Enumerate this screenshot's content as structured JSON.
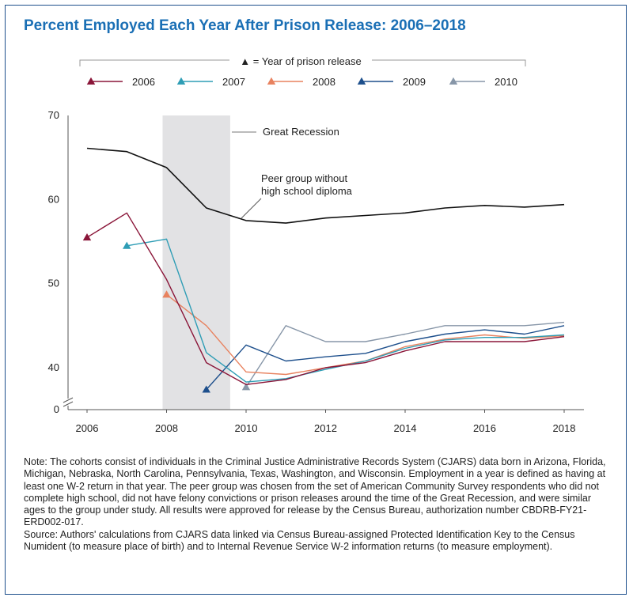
{
  "title": "Percent Employed Each Year After Prison Release: 2006–2018",
  "legend": {
    "header": "▲ = Year of prison release",
    "placement": "top"
  },
  "colors": {
    "2006": "#8a1538",
    "2007": "#2e9db5",
    "2008": "#e8825f",
    "2009": "#1d4f8c",
    "2010": "#8796a8",
    "peer": "#111111",
    "recession": "#e2e2e4"
  },
  "chart_data": {
    "type": "line",
    "title": "Percent Employed Each Year After Prison Release: 2006–2018",
    "xlabel": "",
    "ylabel": "",
    "xlim": [
      2006,
      2018
    ],
    "ylim": [
      35,
      70
    ],
    "y_axis_break": true,
    "xticks": [
      "2006",
      "2008",
      "2010",
      "2012",
      "2014",
      "2016",
      "2018"
    ],
    "yticks": [
      "0",
      "40",
      "50",
      "60",
      "70"
    ],
    "grid": false,
    "shaded_region": {
      "label": "Great Recession",
      "x": [
        2007.9,
        2009.6
      ]
    },
    "series": [
      {
        "name": "2006",
        "key": "2006",
        "x": [
          2006,
          2007,
          2008,
          2009,
          2010,
          2011,
          2012,
          2013,
          2014,
          2015,
          2016,
          2017,
          2018
        ],
        "values": [
          55.5,
          58.4,
          50.5,
          40.6,
          38.0,
          38.6,
          40.0,
          40.6,
          42.0,
          43.1,
          43.1,
          43.1,
          43.7
        ]
      },
      {
        "name": "2007",
        "key": "2007",
        "x": [
          2007,
          2008,
          2009,
          2010,
          2011,
          2012,
          2013,
          2014,
          2015,
          2016,
          2017,
          2018
        ],
        "values": [
          54.5,
          55.3,
          41.8,
          38.3,
          38.7,
          39.8,
          40.8,
          42.3,
          43.3,
          43.6,
          43.6,
          43.9
        ]
      },
      {
        "name": "2008",
        "key": "2008",
        "x": [
          2008,
          2009,
          2010,
          2011,
          2012,
          2013,
          2014,
          2015,
          2016,
          2017,
          2018
        ],
        "values": [
          48.7,
          45.0,
          39.5,
          39.2,
          40.0,
          40.8,
          42.5,
          43.4,
          43.9,
          43.5,
          43.8
        ]
      },
      {
        "name": "2009",
        "key": "2009",
        "x": [
          2009,
          2010,
          2011,
          2012,
          2013,
          2014,
          2015,
          2016,
          2017,
          2018
        ],
        "values": [
          37.4,
          42.7,
          40.8,
          41.3,
          41.7,
          43.1,
          44.0,
          44.5,
          44.0,
          45.0
        ]
      },
      {
        "name": "2010",
        "key": "2010",
        "x": [
          2010,
          2011,
          2012,
          2013,
          2014,
          2015,
          2016,
          2017,
          2018
        ],
        "values": [
          37.7,
          45.0,
          43.1,
          43.1,
          44.0,
          45.0,
          45.0,
          45.0,
          45.4
        ]
      },
      {
        "name": "Peer group without high school diploma",
        "key": "peer",
        "x": [
          2006,
          2007,
          2008,
          2009,
          2010,
          2011,
          2012,
          2013,
          2014,
          2015,
          2016,
          2017,
          2018
        ],
        "values": [
          66.1,
          65.7,
          63.8,
          59.0,
          57.5,
          57.2,
          57.8,
          58.1,
          58.4,
          59.0,
          59.3,
          59.1,
          59.4
        ]
      }
    ],
    "annotations": [
      {
        "name": "recession-label",
        "text": "Great Recession"
      },
      {
        "name": "peer-label",
        "lines": [
          "Peer group without",
          "high school diploma"
        ]
      }
    ]
  },
  "notes": {
    "note": "Note: The cohorts consist of individuals in the Criminal Justice Administrative Records System (CJARS) data born in Arizona, Florida, Michigan, Nebraska, North Carolina, Pennsylvania, Texas, Washington, and Wisconsin. Employment in a year is defined as having at least one W-2 return in that year. The peer group was chosen from the set of American Community Survey respondents who did not complete high school, did not have felony convictions or prison releases around the time of the Great Recession, and were similar ages to the group under study. All results were approved for release by the Census Bureau, authorization number CBDRB-FY21-ERD002-017.",
    "source": "Source: Authors' calculations from CJARS data linked via Census Bureau-assigned Protected Identification Key to the Census Numident (to measure place of birth) and to Internal Revenue Service W-2 information returns (to measure employment)."
  }
}
